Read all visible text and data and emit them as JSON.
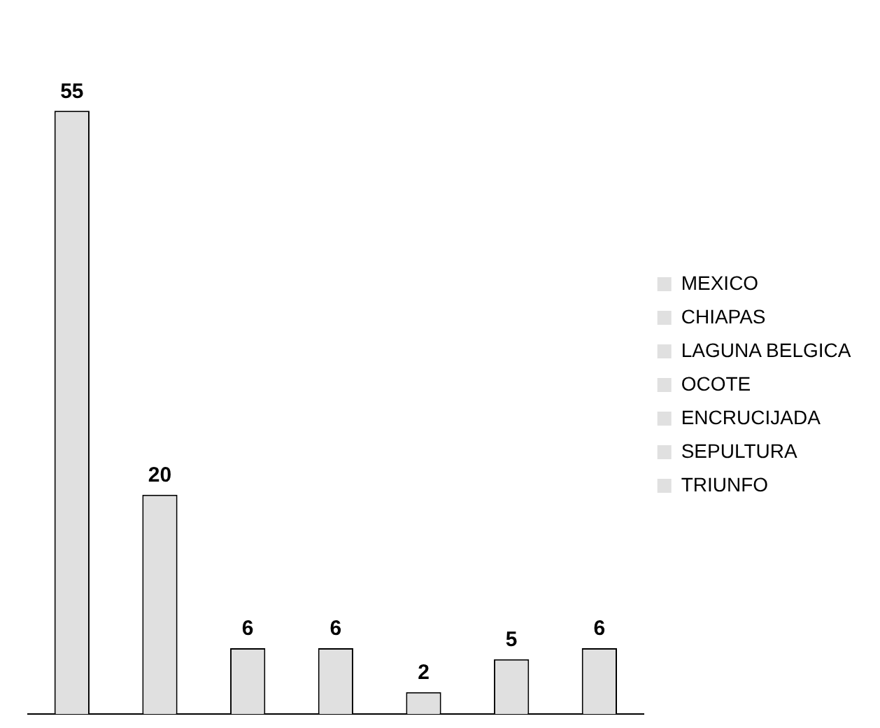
{
  "chart_data": {
    "type": "bar",
    "categories": [
      null,
      null,
      null,
      null,
      null,
      null,
      null
    ],
    "series": [
      {
        "name": "MEXICO",
        "color": "#e0e0e0",
        "values": [
          55,
          null,
          null,
          null,
          null,
          null,
          null
        ]
      },
      {
        "name": "CHIAPAS",
        "color": "#e0e0e0",
        "values": [
          null,
          20,
          null,
          null,
          null,
          null,
          null
        ]
      },
      {
        "name": "LAGUNA BELGICA",
        "color": "#e0e0e0",
        "values": [
          null,
          null,
          6,
          null,
          null,
          null,
          null
        ]
      },
      {
        "name": "OCOTE",
        "color": "#e0e0e0",
        "values": [
          null,
          null,
          null,
          6,
          null,
          null,
          null
        ]
      },
      {
        "name": "ENCRUCIJADA",
        "color": "#e0e0e0",
        "values": [
          null,
          null,
          null,
          null,
          2,
          null,
          null
        ]
      },
      {
        "name": "SEPULTURA",
        "color": "#e0e0e0",
        "values": [
          null,
          null,
          null,
          null,
          null,
          5,
          null
        ]
      },
      {
        "name": "TRIUNFO",
        "color": "#e0e0e0",
        "values": [
          null,
          null,
          null,
          null,
          null,
          null,
          6
        ]
      }
    ],
    "stacked": true,
    "data_labels": true,
    "legend": "right",
    "tick_labels": false
  }
}
